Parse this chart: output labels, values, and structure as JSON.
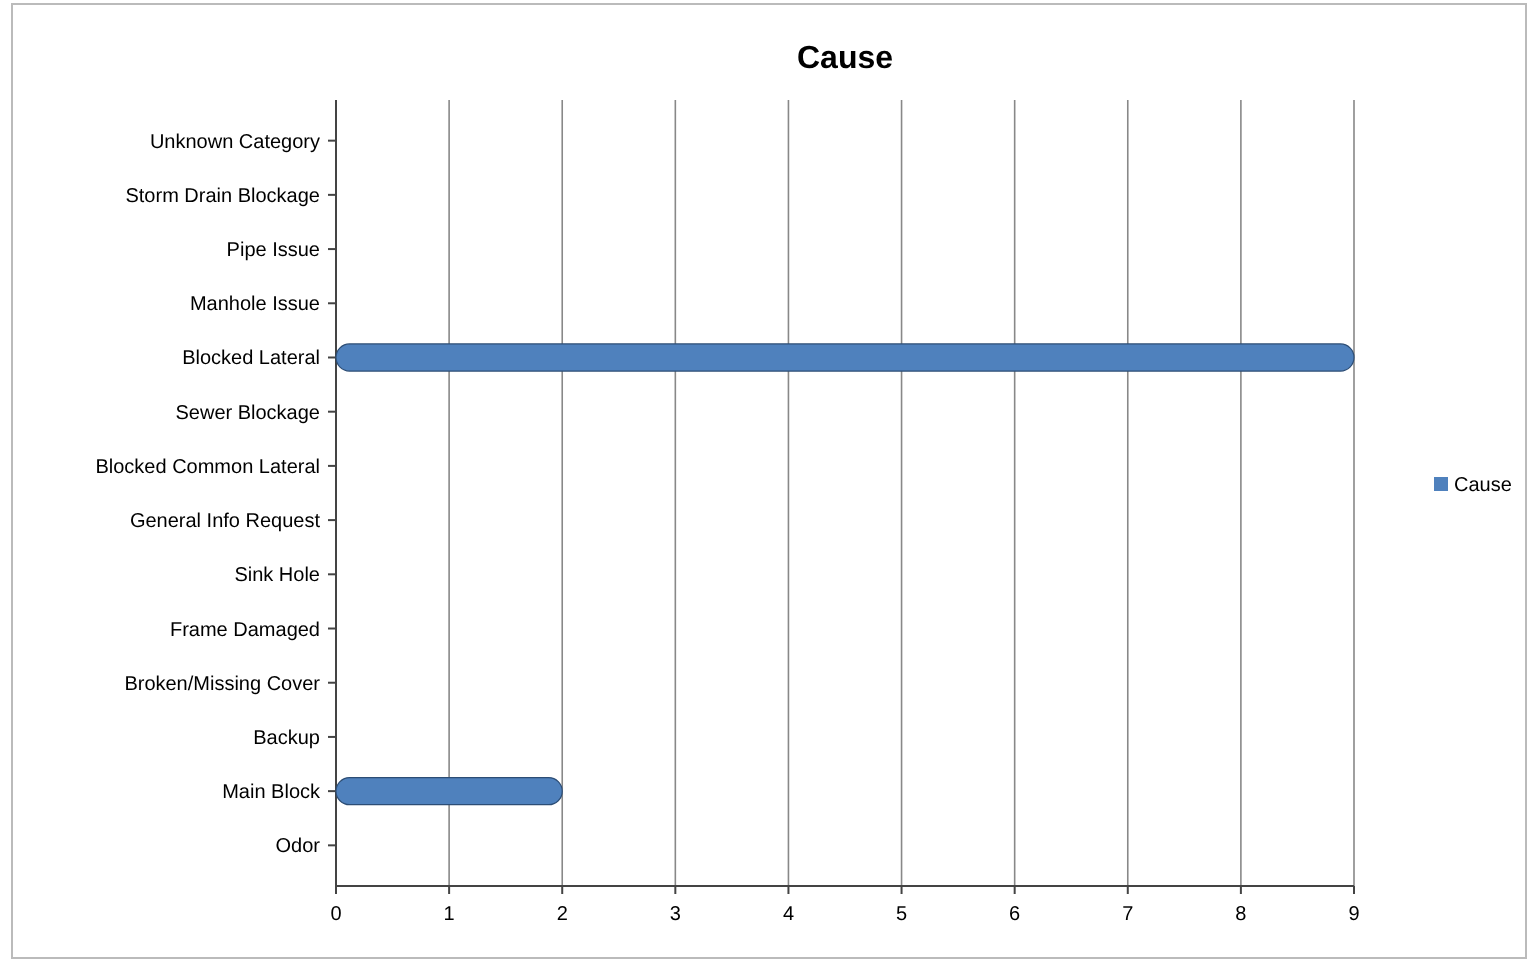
{
  "chart_data": {
    "type": "bar",
    "orientation": "horizontal",
    "title": "Cause",
    "categories": [
      "Unknown Category",
      "Storm Drain Blockage",
      "Pipe Issue",
      "Manhole Issue",
      "Blocked Lateral",
      "Sewer Blockage",
      "Blocked Common Lateral",
      "General Info Request",
      "Sink Hole",
      "Frame Damaged",
      "Broken/Missing Cover",
      "Backup",
      "Main Block",
      "Odor"
    ],
    "series": [
      {
        "name": "Cause",
        "color": "#4f81bd",
        "values": [
          0,
          0,
          0,
          0,
          9,
          0,
          0,
          0,
          0,
          0,
          0,
          0,
          2,
          0
        ]
      }
    ],
    "xlim": [
      0,
      9
    ],
    "xticks": [
      0,
      1,
      2,
      3,
      4,
      5,
      6,
      7,
      8,
      9
    ],
    "grid": "x",
    "legend": "right"
  }
}
